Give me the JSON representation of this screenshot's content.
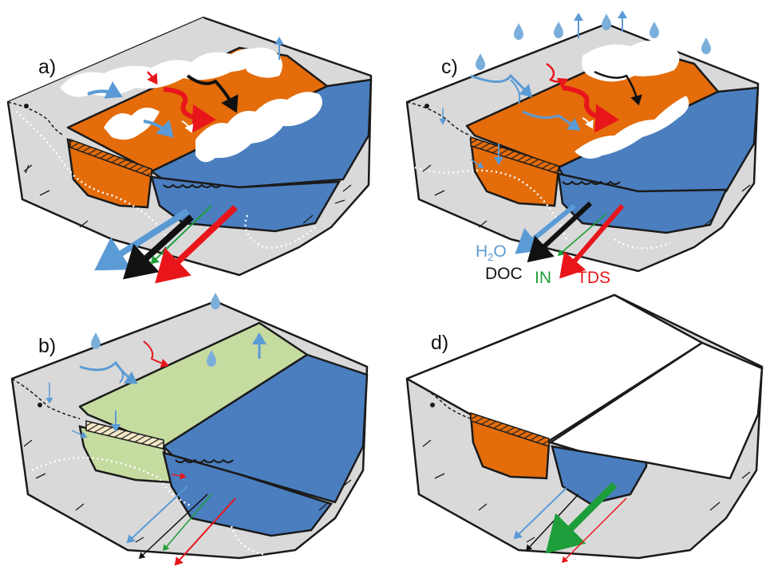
{
  "panels": [
    {
      "id": "a",
      "label": "a)"
    },
    {
      "id": "b",
      "label": "b)"
    },
    {
      "id": "c",
      "label": "c)"
    },
    {
      "id": "d",
      "label": "d)"
    }
  ],
  "legend": {
    "water": {
      "text_main": "H",
      "text_sub": "2",
      "text_end": "O",
      "color": "#5b9bd5"
    },
    "doc": {
      "text": "DOC",
      "color": "#111111"
    },
    "in": {
      "text": "IN",
      "color": "#1e9e3a"
    },
    "tds": {
      "text": "TDS",
      "color": "#e8161b"
    }
  },
  "colors": {
    "terrain": "#d9d9d9",
    "outline": "#1a1a1a",
    "thaw_active_layer": "#e46c0a",
    "wet_active_layer": "#c5dba0",
    "stream": "#4a7ebf",
    "snow": "#ffffff",
    "water_arrow": "#5b9bd5",
    "doc_arrow": "#111111",
    "in_arrow": "#1e9e3a",
    "tds_arrow": "#e8161b"
  },
  "icons": [
    "raindrop-icon",
    "flowpath-arrow-icon",
    "hatched-permafrost-table"
  ]
}
